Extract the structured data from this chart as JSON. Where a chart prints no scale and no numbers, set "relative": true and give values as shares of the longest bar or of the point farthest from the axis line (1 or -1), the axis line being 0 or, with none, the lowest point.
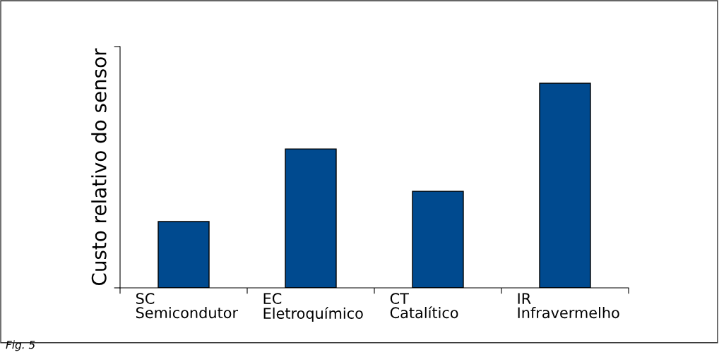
{
  "chart_data": {
    "type": "bar",
    "relative": true,
    "ylabel": "Custo relativo do sensor",
    "categories": [
      "SC\nSemicondutor",
      "EC\nEletroquímico",
      "CT\nCatalítico",
      "IR\nInfravermelho"
    ],
    "values": [
      0.324,
      0.679,
      0.472,
      1.0
    ],
    "color": "#004a8f",
    "grid": false,
    "legend": false,
    "annotations": [
      "Fig. 5"
    ]
  }
}
